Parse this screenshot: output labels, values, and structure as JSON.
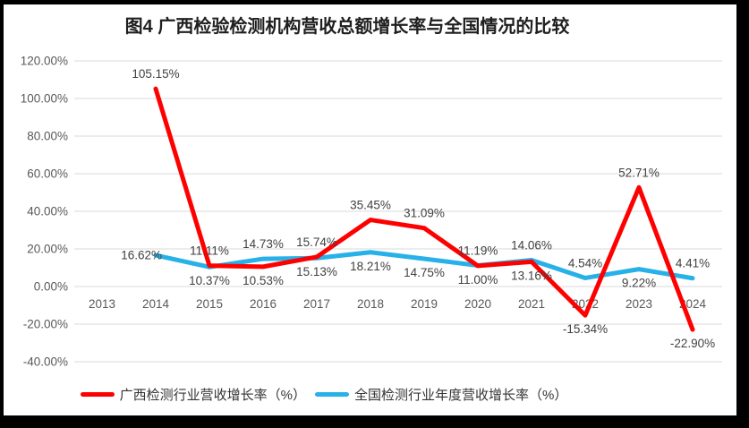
{
  "title": "图4 广西检验检测机构营收总额增长率与全国情况的比较",
  "colors": {
    "guangxi_red": "#FF0000",
    "national_blue": "#27B1E8",
    "gridline": "#D9D9D9",
    "axis_text": "#595959",
    "data_label_text": "#404040",
    "title_text": "#1F1F1F",
    "legend_text": "#333333",
    "frame": "#000000",
    "background": "#FFFFFF"
  },
  "chart_data": {
    "type": "line",
    "title": "图4 广西检验检测机构营收总额增长率与全国情况的比较",
    "categories": [
      "2013",
      "2014",
      "2015",
      "2016",
      "2017",
      "2018",
      "2019",
      "2020",
      "2021",
      "2022",
      "2023",
      "2024"
    ],
    "xlabel": "",
    "ylabel": "",
    "ylim": [
      -40,
      120
    ],
    "grid": true,
    "legend_position": "bottom",
    "y_axis_ticks": [
      {
        "value": 120,
        "label": "120.00%"
      },
      {
        "value": 100,
        "label": "100.00%"
      },
      {
        "value": 80,
        "label": "80.00%"
      },
      {
        "value": 60,
        "label": "60.00%"
      },
      {
        "value": 40,
        "label": "40.00%"
      },
      {
        "value": 20,
        "label": "20.00%"
      },
      {
        "value": 0,
        "label": "0.00%"
      },
      {
        "value": -20,
        "label": "-20.00%"
      },
      {
        "value": -40,
        "label": "-40.00%"
      }
    ],
    "series": [
      {
        "id": "guangxi",
        "name": "广西检测行业营收增长率（%）",
        "color": "#FF0000",
        "values": [
          null,
          105.15,
          11.11,
          10.53,
          15.74,
          35.45,
          31.09,
          11.0,
          13.16,
          -15.34,
          52.71,
          -22.9
        ],
        "labels": [
          null,
          "105.15%",
          "11.11%",
          "10.53%",
          "15.74%",
          "35.45%",
          "31.09%",
          "11.00%",
          "13.16%",
          "-15.34%",
          "52.71%",
          "-22.90%"
        ],
        "label_positions": [
          null,
          "above",
          "above",
          "below",
          "above",
          "above",
          "above",
          "below",
          "below",
          "below",
          "above",
          "below"
        ]
      },
      {
        "id": "national",
        "name": "全国检测行业年度营收增长率（%）",
        "color": "#27B1E8",
        "values": [
          null,
          16.62,
          10.37,
          14.73,
          15.13,
          18.21,
          14.75,
          11.19,
          14.06,
          4.54,
          9.22,
          4.41
        ],
        "labels": [
          null,
          "16.62%",
          "10.37%",
          "14.73%",
          "15.13%",
          "18.21%",
          "14.75%",
          "11.19%",
          "14.06%",
          "4.54%",
          "9.22%",
          "4.41%"
        ],
        "label_positions": [
          null,
          "left",
          "below",
          "above",
          "below",
          "below",
          "below",
          "above",
          "above",
          "above",
          "below",
          "above"
        ]
      }
    ]
  }
}
